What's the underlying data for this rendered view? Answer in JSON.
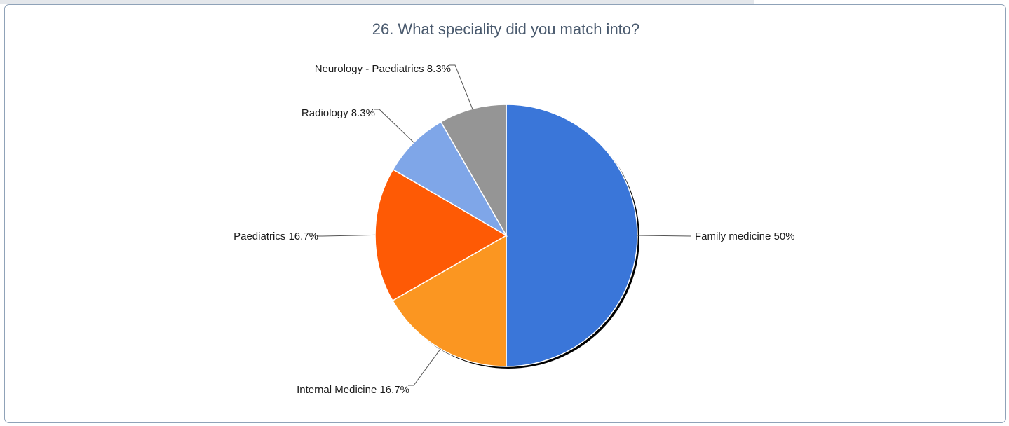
{
  "chart_data": {
    "type": "pie",
    "title": "26. What speciality did you match into?",
    "slices": [
      {
        "label": "Family medicine",
        "value": 50,
        "display": "Family medicine 50%",
        "color": "#3a76d9"
      },
      {
        "label": "Internal Medicine",
        "value": 16.7,
        "display": "Internal Medicine 16.7%",
        "color": "#fb9621"
      },
      {
        "label": "Paediatrics",
        "value": 16.7,
        "display": "Paediatrics 16.7%",
        "color": "#fe5a05"
      },
      {
        "label": "Radiology",
        "value": 8.3,
        "display": "Radiology 8.3%",
        "color": "#7fa6e8"
      },
      {
        "label": "Neurology - Paediatrics",
        "value": 8.3,
        "display": "Neurology - Paediatrics 8.3%",
        "color": "#959595"
      }
    ],
    "legend": "none",
    "grid": false
  }
}
